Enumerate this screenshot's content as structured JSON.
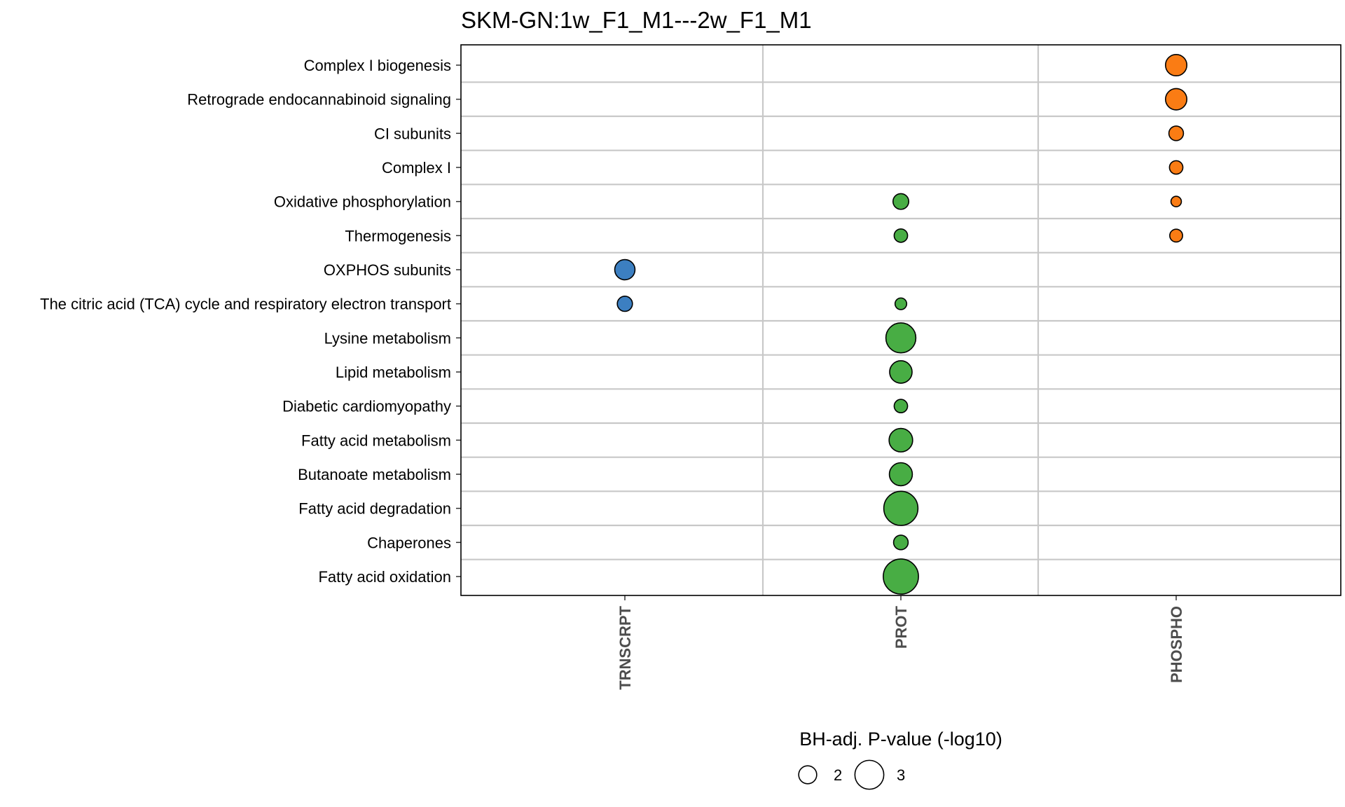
{
  "chart_data": {
    "type": "scatter",
    "title": "SKM-GN:1w_F1_M1---2w_F1_M1",
    "xlabel": "",
    "ylabel": "",
    "categories_x": [
      "TRNSCRPT",
      "PROT",
      "PHOSPHO"
    ],
    "categories_y": [
      "Complex I biogenesis",
      "Retrograde endocannabinoid signaling",
      "CI subunits",
      "Complex I",
      "Oxidative phosphorylation",
      "Thermogenesis",
      "OXPHOS subunits",
      "The citric acid (TCA) cycle and respiratory electron transport",
      "Lysine metabolism",
      "Lipid metabolism",
      "Diabetic cardiomyopathy",
      "Fatty acid metabolism",
      "Butanoate metabolism",
      "Fatty acid degradation",
      "Chaperones",
      "Fatty acid oxidation"
    ],
    "grid": true,
    "legend_position": "bottom",
    "size_legend": {
      "title": "BH-adj. P-value (-log10)",
      "breaks": [
        2,
        3
      ]
    },
    "colors": {
      "TRNSCRPT": "#3c7fc1",
      "PROT": "#48ad44",
      "PHOSPHO": "#fa7c14",
      "grid": "#c8c8c8",
      "outline": "#000000"
    },
    "points": [
      {
        "x": "PHOSPHO",
        "y": "Complex I biogenesis",
        "value": 2.3
      },
      {
        "x": "PHOSPHO",
        "y": "Retrograde endocannabinoid signaling",
        "value": 2.3
      },
      {
        "x": "PHOSPHO",
        "y": "CI subunits",
        "value": 1.7
      },
      {
        "x": "PHOSPHO",
        "y": "Complex I",
        "value": 1.6
      },
      {
        "x": "PROT",
        "y": "Oxidative phosphorylation",
        "value": 1.8
      },
      {
        "x": "PHOSPHO",
        "y": "Oxidative phosphorylation",
        "value": 1.35
      },
      {
        "x": "PROT",
        "y": "Thermogenesis",
        "value": 1.6
      },
      {
        "x": "PHOSPHO",
        "y": "Thermogenesis",
        "value": 1.55
      },
      {
        "x": "TRNSCRPT",
        "y": "OXPHOS subunits",
        "value": 2.2
      },
      {
        "x": "TRNSCRPT",
        "y": "The citric acid (TCA) cycle and respiratory electron transport",
        "value": 1.75
      },
      {
        "x": "PROT",
        "y": "The citric acid (TCA) cycle and respiratory electron transport",
        "value": 1.45
      },
      {
        "x": "PROT",
        "y": "Lysine metabolism",
        "value": 3.1
      },
      {
        "x": "PROT",
        "y": "Lipid metabolism",
        "value": 2.4
      },
      {
        "x": "PROT",
        "y": "Diabetic cardiomyopathy",
        "value": 1.6
      },
      {
        "x": "PROT",
        "y": "Fatty acid metabolism",
        "value": 2.5
      },
      {
        "x": "PROT",
        "y": "Butanoate metabolism",
        "value": 2.45
      },
      {
        "x": "PROT",
        "y": "Fatty acid degradation",
        "value": 3.5
      },
      {
        "x": "PROT",
        "y": "Chaperones",
        "value": 1.7
      },
      {
        "x": "PROT",
        "y": "Fatty acid oxidation",
        "value": 3.6
      }
    ]
  }
}
